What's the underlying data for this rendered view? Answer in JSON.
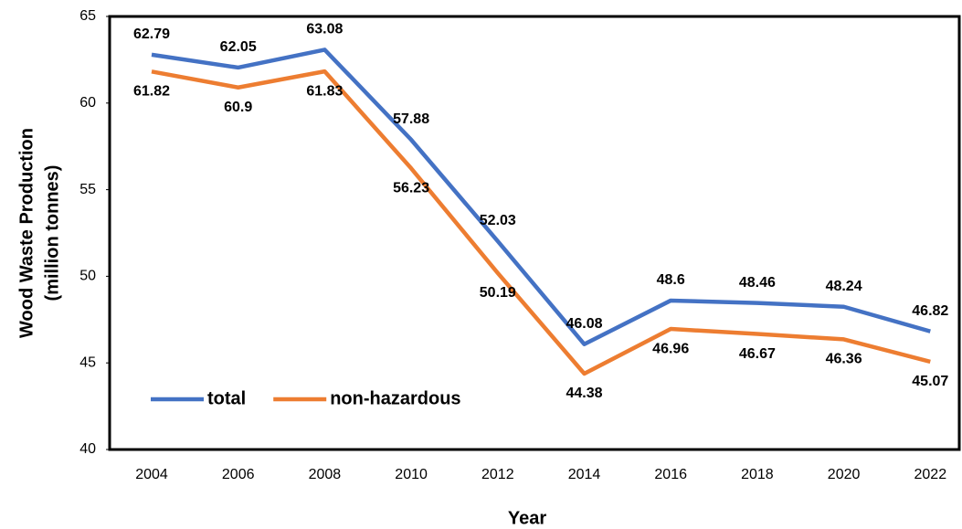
{
  "chart_data": {
    "type": "line",
    "x_label": "Year",
    "y_label": [
      "Wood Waste Production",
      "(million tonnes)"
    ],
    "categories": [
      "2004",
      "2006",
      "2008",
      "2010",
      "2012",
      "2014",
      "2016",
      "2018",
      "2020",
      "2022"
    ],
    "series": [
      {
        "name": "total",
        "color": "#4472c4",
        "values": [
          62.79,
          62.05,
          63.08,
          57.88,
          52.03,
          46.08,
          48.6,
          48.46,
          48.24,
          46.82
        ]
      },
      {
        "name": "non-hazardous",
        "color": "#ed7d31",
        "values": [
          61.82,
          60.9,
          61.83,
          56.23,
          50.19,
          44.38,
          46.96,
          46.67,
          46.36,
          45.07
        ]
      }
    ],
    "ylim": [
      40,
      65
    ],
    "yticks": [
      40,
      45,
      50,
      55,
      60,
      65
    ],
    "legend": "lower left"
  }
}
